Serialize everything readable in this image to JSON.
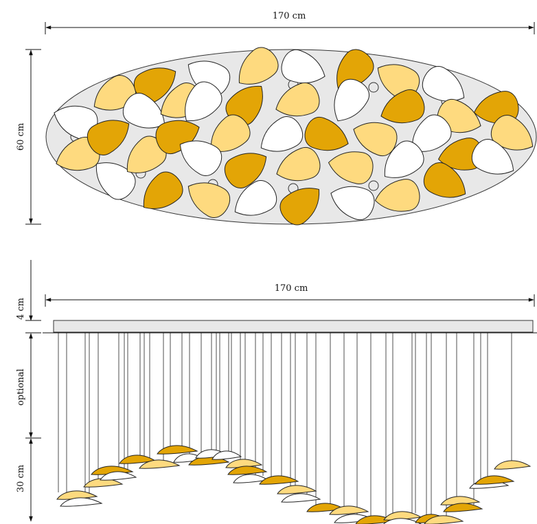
{
  "dimensions": {
    "top_width": "170 cm",
    "top_height": "60 cm",
    "side_width": "170 cm",
    "canopy_height": "4 cm",
    "cable_length": "optional",
    "drop_height": "30 cm"
  },
  "colors": {
    "dark_amber": "#E3A506",
    "light_amber": "#FEDA7F",
    "white": "#FFFFFF",
    "canopy": "#E8E8E8",
    "outline": "#222222"
  }
}
